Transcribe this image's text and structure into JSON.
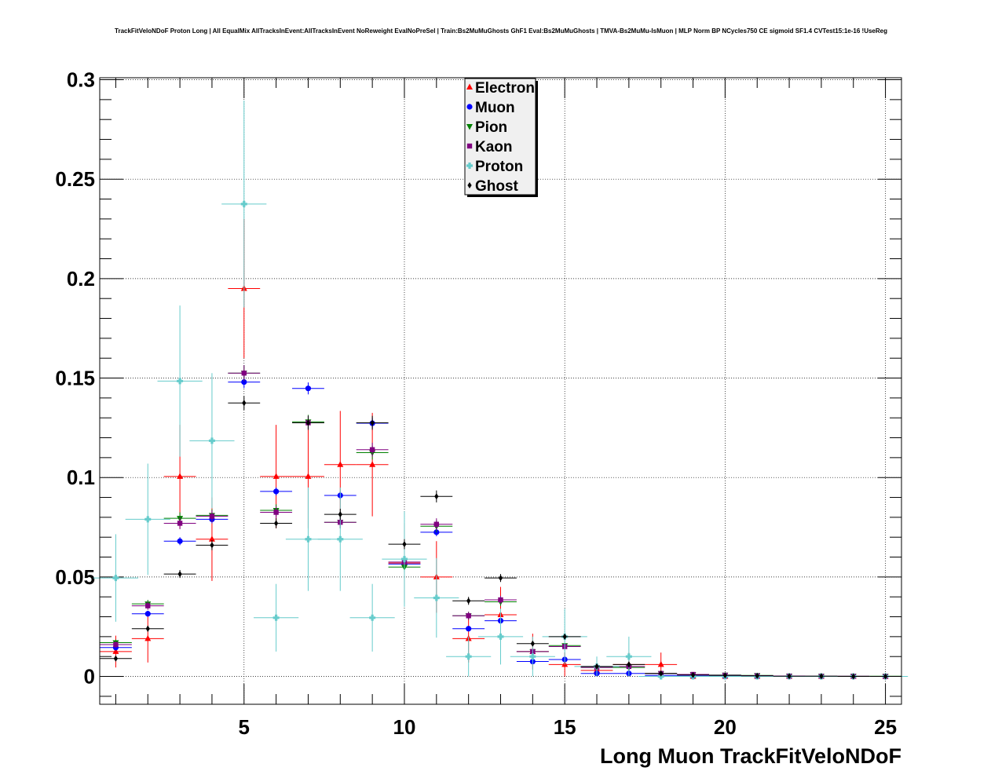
{
  "chart_data": {
    "type": "scatter",
    "title": "TrackFitVeloNDoF Proton Long | All EqualMix AllTracksInEvent:AllTracksInEvent NoReweight EvalNoPreSel | Train:Bs2MuMuGhosts GhF1 Eval:Bs2MuMuGhosts | TMVA-Bs2MuMu-IsMuon | MLP Norm BP NCycles750 CE sigmoid SF1.4 CVTest15:1e-16 !UseReg",
    "xlabel": "Long Muon TrackFitVeloNDoF",
    "ylabel": "",
    "xlim": [
      0.5,
      25.5
    ],
    "ylim": [
      -0.014,
      0.301
    ],
    "x_ticks": [
      5,
      10,
      15,
      20,
      25
    ],
    "y_ticks": [
      0,
      0.05,
      0.1,
      0.15,
      0.2,
      0.25,
      0.3
    ],
    "x_tick_labels": [
      "5",
      "10",
      "15",
      "20",
      "25"
    ],
    "y_tick_labels": [
      "0",
      "0.05",
      "0.1",
      "0.15",
      "0.2",
      "0.25",
      "0.3"
    ],
    "grid": true,
    "legend_position": "top-center",
    "x": [
      1,
      2,
      3,
      4,
      5,
      6,
      7,
      8,
      9,
      10,
      11,
      12,
      13,
      14,
      15,
      16,
      17,
      18,
      19,
      20,
      21,
      22,
      23,
      24,
      25
    ],
    "series": [
      {
        "name": "Electron",
        "color": "#ff0000",
        "marker": "triangle-up",
        "values": [
          0.0125,
          0.019,
          0.1005,
          0.069,
          0.195,
          0.1005,
          0.1005,
          0.1065,
          0.1065,
          0.057,
          0.05,
          0.019,
          0.031,
          0.0125,
          0.006,
          0.003,
          0.006,
          0.006,
          0,
          0,
          0,
          0,
          0,
          0,
          0
        ],
        "errors": [
          0.008,
          0.012,
          0.026,
          0.021,
          0.035,
          0.026,
          0.026,
          0.027,
          0.026,
          0.02,
          0.018,
          0.012,
          0.014,
          0.009,
          0.006,
          0.003,
          0.006,
          0.006,
          0,
          0,
          0,
          0,
          0,
          0,
          0
        ]
      },
      {
        "name": "Muon",
        "color": "#0000ff",
        "marker": "circle",
        "values": [
          0.0145,
          0.0315,
          0.068,
          0.079,
          0.148,
          0.093,
          0.1448,
          0.091,
          0.1273,
          0.0565,
          0.0725,
          0.024,
          0.028,
          0.0075,
          0.0085,
          0.0015,
          0.0015,
          0.0005,
          0.0002,
          0.0001,
          0,
          0,
          0,
          0,
          0
        ],
        "errors": [
          0.001,
          0.0015,
          0.002,
          0.002,
          0.003,
          0.002,
          0.003,
          0.002,
          0.0025,
          0.0015,
          0.002,
          0.001,
          0.001,
          0.0008,
          0.0008,
          0.0004,
          0.0004,
          0.0002,
          0.0001,
          0.0001,
          0,
          0,
          0,
          0,
          0
        ]
      },
      {
        "name": "Pion",
        "color": "#008000",
        "marker": "triangle-down",
        "values": [
          0.017,
          0.0365,
          0.0795,
          0.081,
          0.1525,
          0.0835,
          0.128,
          0.0775,
          0.1125,
          0.055,
          0.0755,
          0.0305,
          0.0375,
          0.0125,
          0.0155,
          0.0045,
          0.0045,
          0.0015,
          0.001,
          0.0007,
          0.0005,
          0.0002,
          0.0001,
          0.0001,
          0.0001
        ],
        "errors": [
          0.0015,
          0.002,
          0.003,
          0.003,
          0.004,
          0.003,
          0.0035,
          0.003,
          0.0035,
          0.0025,
          0.003,
          0.002,
          0.002,
          0.0012,
          0.0013,
          0.0007,
          0.0007,
          0.0004,
          0.0003,
          0.0002,
          0.0002,
          0.0001,
          0.0001,
          0.0001,
          0.0001
        ]
      },
      {
        "name": "Kaon",
        "color": "#800080",
        "marker": "square",
        "values": [
          0.016,
          0.0355,
          0.077,
          0.0805,
          0.1525,
          0.0825,
          0.1275,
          0.0775,
          0.114,
          0.0575,
          0.0765,
          0.0305,
          0.0385,
          0.0125,
          0.015,
          0.0045,
          0.005,
          0.0015,
          0.001,
          0.0006,
          0.0004,
          0.0002,
          0.0001,
          0.0001,
          0
        ],
        "errors": [
          0.0015,
          0.002,
          0.003,
          0.003,
          0.004,
          0.003,
          0.0035,
          0.003,
          0.0035,
          0.0025,
          0.003,
          0.002,
          0.002,
          0.0012,
          0.0013,
          0.0007,
          0.0007,
          0.0004,
          0.0003,
          0.0002,
          0.0002,
          0.0001,
          0.0001,
          0.0001,
          0
        ]
      },
      {
        "name": "Proton",
        "color": "#66cccc",
        "marker": "cross",
        "values": [
          0.0495,
          0.079,
          0.1485,
          0.1185,
          0.2375,
          0.0295,
          0.069,
          0.069,
          0.0295,
          0.059,
          0.0395,
          0.01,
          0.02,
          0.01,
          0.02,
          0.005,
          0.01,
          0,
          0,
          0,
          0,
          0,
          0,
          0,
          0
        ],
        "errors": [
          0.022,
          0.028,
          0.038,
          0.034,
          0.052,
          0.017,
          0.026,
          0.026,
          0.017,
          0.024,
          0.02,
          0.01,
          0.014,
          0.01,
          0.014,
          0.005,
          0.01,
          0,
          0,
          0,
          0,
          0,
          0,
          0,
          0
        ],
        "x_error": 0.7
      },
      {
        "name": "Ghost",
        "color": "#000000",
        "marker": "diamond",
        "values": [
          0.009,
          0.024,
          0.0515,
          0.066,
          0.1375,
          0.077,
          0.1275,
          0.0815,
          0.1275,
          0.0665,
          0.0905,
          0.038,
          0.0495,
          0.0165,
          0.02,
          0.005,
          0.006,
          0.0015,
          0.0007,
          0.0005,
          0.0003,
          0.0001,
          0.0001,
          0,
          0
        ],
        "errors": [
          0.001,
          0.0015,
          0.002,
          0.0025,
          0.0035,
          0.0025,
          0.0035,
          0.0028,
          0.0035,
          0.0025,
          0.003,
          0.002,
          0.002,
          0.0012,
          0.0013,
          0.0006,
          0.0007,
          0.0004,
          0.0002,
          0.0002,
          0.0001,
          0.0001,
          0.0001,
          0,
          0
        ]
      }
    ]
  }
}
